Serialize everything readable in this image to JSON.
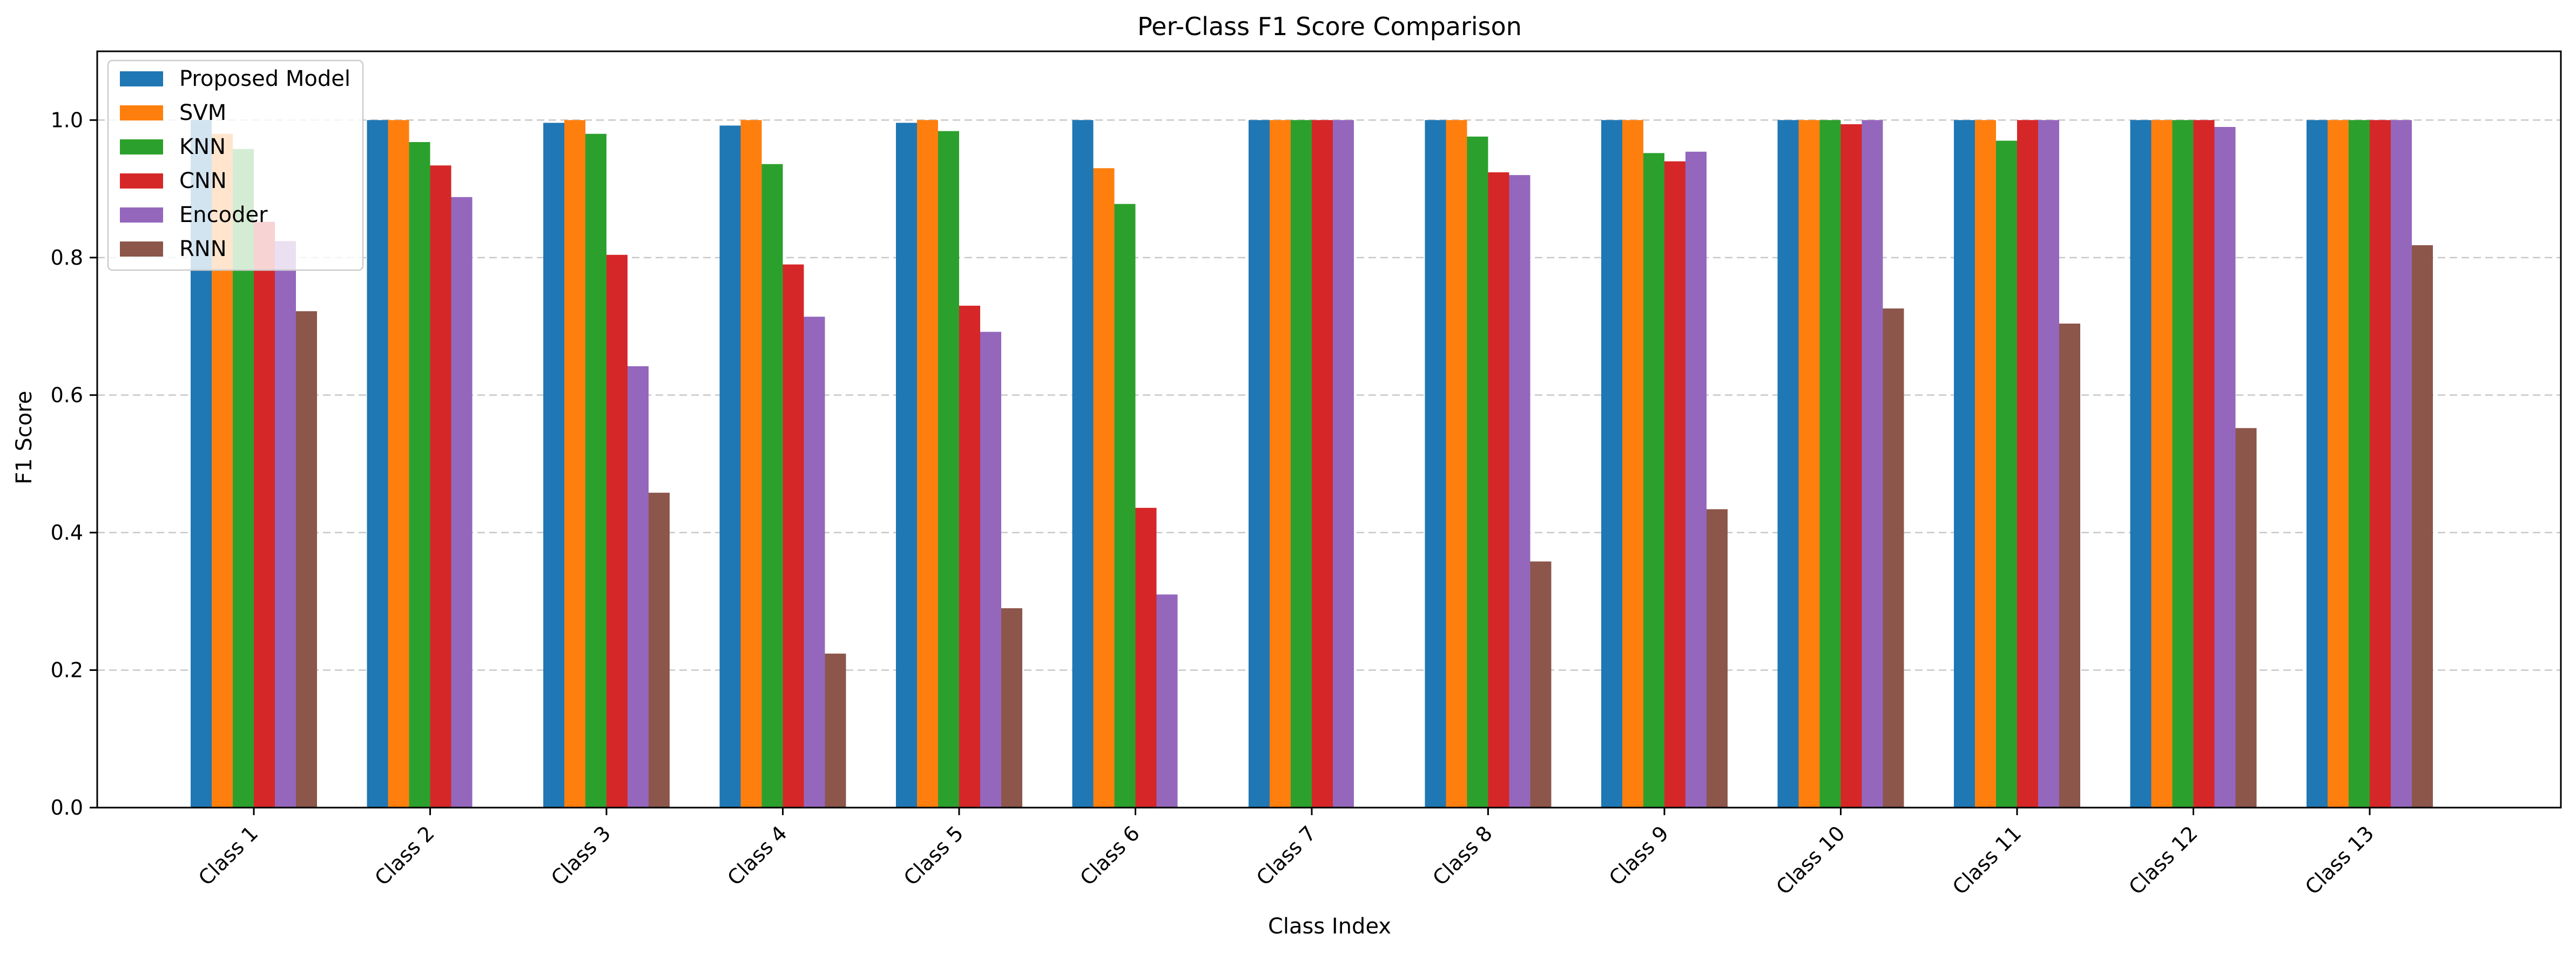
{
  "chart_data": {
    "type": "bar",
    "title": "Per-Class F1 Score Comparison",
    "xlabel": "Class Index",
    "ylabel": "F1 Score",
    "ylim": [
      0,
      1.1
    ],
    "yticks": [
      0.0,
      0.2,
      0.4,
      0.6,
      0.8,
      1.0
    ],
    "grid": "y-dashed",
    "legend_position": "top-left",
    "categories": [
      "Class 1",
      "Class 2",
      "Class 3",
      "Class 4",
      "Class 5",
      "Class 6",
      "Class 7",
      "Class 8",
      "Class 9",
      "Class 10",
      "Class 11",
      "Class 12",
      "Class 13"
    ],
    "series": [
      {
        "name": "Proposed Model",
        "color": "#1f77b4",
        "values": [
          1.0,
          1.0,
          0.996,
          0.992,
          0.996,
          1.0,
          1.0,
          1.0,
          1.0,
          1.0,
          1.0,
          1.0,
          1.0
        ]
      },
      {
        "name": "SVM",
        "color": "#ff7f0e",
        "values": [
          0.98,
          1.0,
          1.0,
          1.0,
          1.0,
          0.93,
          1.0,
          1.0,
          1.0,
          1.0,
          1.0,
          1.0,
          1.0
        ]
      },
      {
        "name": "KNN",
        "color": "#2ca02c",
        "values": [
          0.958,
          0.968,
          0.98,
          0.936,
          0.984,
          0.878,
          1.0,
          0.976,
          0.952,
          1.0,
          0.97,
          1.0,
          1.0
        ]
      },
      {
        "name": "CNN",
        "color": "#d62728",
        "values": [
          0.852,
          0.934,
          0.804,
          0.79,
          0.73,
          0.436,
          1.0,
          0.924,
          0.94,
          0.994,
          1.0,
          1.0,
          1.0
        ]
      },
      {
        "name": "Encoder",
        "color": "#9467bd",
        "values": [
          0.824,
          0.888,
          0.642,
          0.714,
          0.692,
          0.31,
          1.0,
          0.92,
          0.954,
          1.0,
          1.0,
          0.99,
          1.0
        ]
      },
      {
        "name": "RNN",
        "color": "#8c564b",
        "values": [
          0.722,
          0.0,
          0.458,
          0.224,
          0.29,
          0.0,
          0.0,
          0.358,
          0.434,
          0.726,
          0.704,
          0.552,
          0.818
        ]
      }
    ]
  }
}
